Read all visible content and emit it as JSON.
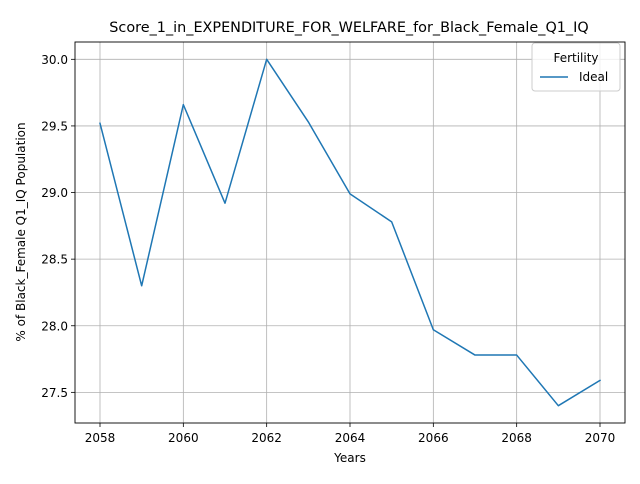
{
  "chart_data": {
    "type": "line",
    "title": "Score_1_in_EXPENDITURE_FOR_WELFARE_for_Black_Female_Q1_IQ",
    "xlabel": "Years",
    "ylabel": "% of Black_Female Q1_IQ Population",
    "x": [
      2058,
      2059,
      2060,
      2061,
      2062,
      2063,
      2064,
      2065,
      2066,
      2067,
      2068,
      2069,
      2070
    ],
    "xlim": [
      2057.4,
      2070.6
    ],
    "ylim": [
      27.27,
      30.13
    ],
    "xticks": [
      2058,
      2060,
      2062,
      2064,
      2066,
      2068,
      2070
    ],
    "xtick_labels": [
      "2058",
      "2060",
      "2062",
      "2064",
      "2066",
      "2068",
      "2070"
    ],
    "yticks": [
      27.5,
      28.0,
      28.5,
      29.0,
      29.5,
      30.0
    ],
    "ytick_labels": [
      "27.5",
      "28.0",
      "28.5",
      "29.0",
      "29.5",
      "30.0"
    ],
    "grid": true,
    "legend": {
      "title": "Fertility",
      "placement": "top-right"
    },
    "series": [
      {
        "name": "Ideal",
        "color": "#1f77b4",
        "values": [
          29.52,
          28.3,
          29.66,
          28.92,
          30.0,
          29.53,
          28.99,
          28.78,
          27.97,
          27.78,
          27.78,
          27.4,
          27.59
        ]
      }
    ]
  }
}
